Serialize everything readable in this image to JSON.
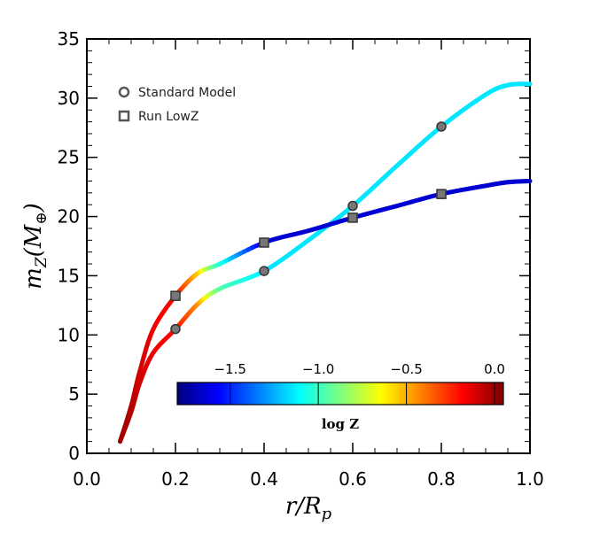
{
  "chart_data": {
    "type": "line",
    "xlabel": "r/R",
    "xlabel_sub": "p",
    "ylabel": "m",
    "ylabel_sub": "Z",
    "ylabel_unit_open": "(M",
    "ylabel_unit_sub": "⊕",
    "ylabel_unit_close": ")",
    "xlim": [
      0.0,
      1.0
    ],
    "ylim": [
      0,
      35
    ],
    "x_ticks": [
      "0.0",
      "0.2",
      "0.4",
      "0.6",
      "0.8",
      "1.0"
    ],
    "y_ticks": [
      "0",
      "5",
      "10",
      "15",
      "20",
      "25",
      "30",
      "35"
    ],
    "legend_position": "top-left",
    "series": [
      {
        "name": "Standard Model",
        "marker": "circle",
        "x": [
          0.075,
          0.1,
          0.12,
          0.15,
          0.2,
          0.25,
          0.3,
          0.4,
          0.5,
          0.6,
          0.7,
          0.8,
          0.9,
          0.95,
          1.0
        ],
        "y": [
          1.0,
          3.5,
          6.0,
          8.5,
          10.5,
          12.6,
          13.9,
          15.4,
          18.0,
          20.9,
          24.3,
          27.6,
          30.3,
          31.1,
          31.2
        ],
        "logZ": [
          0.0,
          -0.05,
          -0.1,
          -0.15,
          -0.2,
          -0.45,
          -0.95,
          -1.15,
          -1.15,
          -1.15,
          -1.15,
          -1.15,
          -1.15,
          -1.15,
          -1.15
        ],
        "marker_x": [
          0.2,
          0.4,
          0.6,
          0.8
        ],
        "marker_y": [
          10.5,
          15.4,
          20.9,
          27.6
        ]
      },
      {
        "name": "Run LowZ",
        "marker": "square",
        "x": [
          0.075,
          0.1,
          0.12,
          0.15,
          0.2,
          0.25,
          0.3,
          0.4,
          0.5,
          0.6,
          0.7,
          0.8,
          0.9,
          0.95,
          1.0
        ],
        "y": [
          1.0,
          4.0,
          7.0,
          10.5,
          13.3,
          15.2,
          16.0,
          17.8,
          18.8,
          19.9,
          20.9,
          21.9,
          22.6,
          22.9,
          23.0
        ],
        "logZ": [
          0.0,
          -0.05,
          -0.1,
          -0.15,
          -0.2,
          -0.55,
          -1.05,
          -1.65,
          -1.65,
          -1.65,
          -1.65,
          -1.65,
          -1.65,
          -1.65,
          -1.65
        ],
        "marker_x": [
          0.2,
          0.4,
          0.6,
          0.8
        ],
        "marker_y": [
          13.3,
          17.8,
          19.9,
          21.9
        ]
      }
    ],
    "colorbar": {
      "title": "log Z",
      "range": [
        -1.8,
        0.05
      ],
      "tick_values": [
        -1.5,
        -1.0,
        -0.5,
        0.0
      ],
      "tick_labels": [
        "−1.5",
        "−1.0",
        "−0.5",
        "0.0"
      ],
      "colormap": "jet",
      "stops": [
        "#00007f",
        "#0000ff",
        "#007fff",
        "#00ffff",
        "#7fff7f",
        "#ffff00",
        "#ff7f00",
        "#ff0000",
        "#7f0000"
      ]
    }
  }
}
